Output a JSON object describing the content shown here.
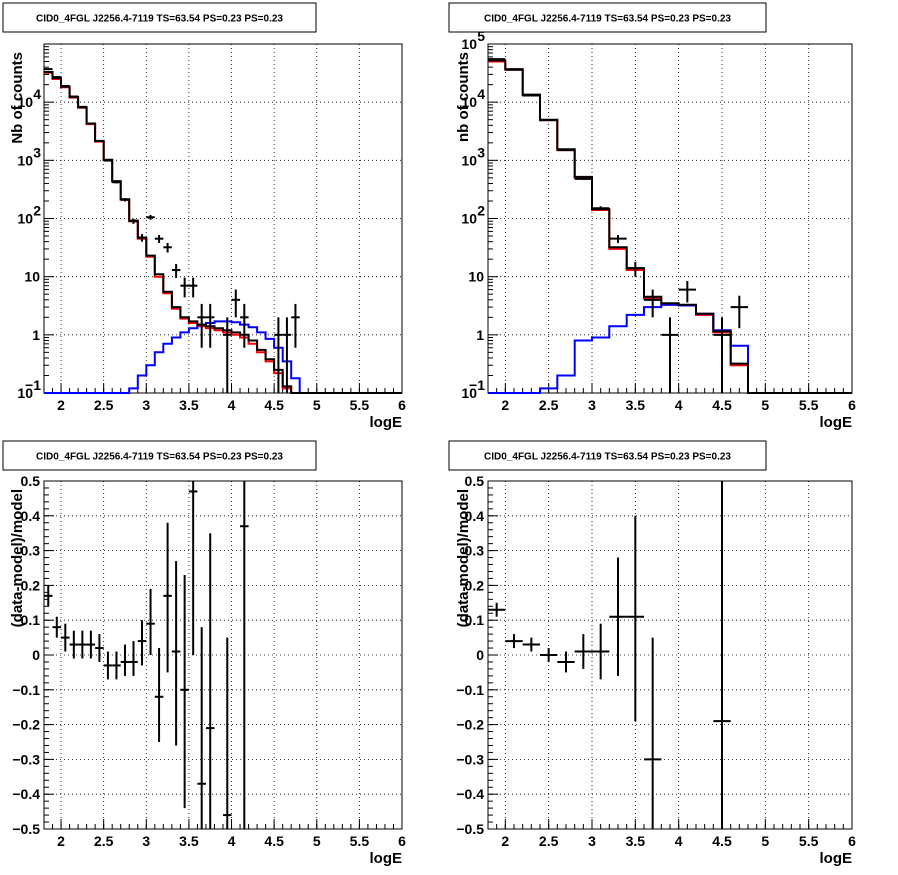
{
  "chart_data": [
    {
      "type": "line",
      "title": "CID0_4FGL J2256.4-7119 TS=63.54 PS=0.23 PS=0.23",
      "xlabel": "logE",
      "ylabel": "Nb of counts",
      "xlim": [
        1.8,
        6.0
      ],
      "ylim": [
        0.1,
        100000
      ],
      "yscale": "log",
      "grid": true,
      "x_ticks": [
        "2",
        "2.5",
        "3",
        "3.5",
        "4",
        "4.5",
        "5",
        "5.5",
        "6"
      ],
      "y_ticks": [
        {
          "v": 0.1,
          "t": "10"
        },
        {
          "v": 1,
          "t": "1"
        },
        {
          "v": 10,
          "t": "10"
        },
        {
          "v": 100,
          "t": "10"
        },
        {
          "v": 1000,
          "t": "10"
        },
        {
          "v": 10000,
          "t": "10"
        }
      ],
      "y_tick_exps": [
        {
          "v": 0.1,
          "t": "−1"
        },
        {
          "v": 100,
          "t": "2"
        },
        {
          "v": 1000,
          "t": "3"
        },
        {
          "v": 10000,
          "t": "4"
        }
      ],
      "bin_edges": [
        1.8,
        1.9,
        2.0,
        2.1,
        2.2,
        2.3,
        2.4,
        2.5,
        2.6,
        2.7,
        2.8,
        2.9,
        3.0,
        3.1,
        3.2,
        3.3,
        3.4,
        3.5,
        3.6,
        3.7,
        3.8,
        3.9,
        4.0,
        4.1,
        4.2,
        4.3,
        4.4,
        4.5,
        4.6,
        4.7,
        4.8,
        4.9,
        5.0,
        5.1,
        5.2,
        5.3,
        5.4,
        5.5,
        5.6,
        5.7,
        5.8,
        5.9,
        6.0
      ],
      "series": [
        {
          "color": "#ff0000",
          "values": [
            32000,
            25000,
            18000,
            12000,
            8000,
            4200,
            2100,
            1000,
            430,
            210,
            90,
            45,
            22,
            10,
            5.2,
            2.8,
            1.9,
            1.6,
            1.4,
            1.3,
            1.2,
            1.1,
            1.0,
            0.9,
            0.7,
            0.5,
            0.35,
            0.22,
            0.12,
            0.1,
            0.1,
            0.1,
            0.1,
            0.1,
            0.1,
            0.1,
            0.1,
            0.1,
            0.1,
            0.1,
            0.1,
            0.1
          ]
        },
        {
          "color": "#0000ff",
          "values": [
            0.1,
            0.1,
            0.1,
            0.1,
            0.1,
            0.1,
            0.1,
            0.1,
            0.1,
            0.1,
            0.12,
            0.2,
            0.3,
            0.5,
            0.7,
            0.9,
            1.1,
            1.3,
            1.5,
            1.6,
            1.7,
            1.7,
            1.65,
            1.5,
            1.35,
            1.1,
            0.85,
            0.6,
            0.35,
            0.18,
            0.1,
            0.1,
            0.1,
            0.1,
            0.1,
            0.1,
            0.1,
            0.1,
            0.1,
            0.1,
            0.1,
            0.1
          ]
        },
        {
          "color": "#000000",
          "values": [
            33000,
            26000,
            18500,
            12300,
            8200,
            4300,
            2150,
            1020,
            440,
            215,
            92,
            47,
            23,
            11,
            5.5,
            3.0,
            2.0,
            1.7,
            1.5,
            1.4,
            1.3,
            1.2,
            1.1,
            1.0,
            0.8,
            0.55,
            0.38,
            0.25,
            0.13,
            0.1,
            0.1,
            0.1,
            0.1,
            0.1,
            0.1,
            0.1,
            0.1,
            0.1,
            0.1,
            0.1,
            0.1,
            0.1
          ]
        }
      ],
      "points": [
        {
          "x": 1.85,
          "y": 37000,
          "dx": 0.05,
          "lo": 36500,
          "hi": 37500
        },
        {
          "x": 1.95,
          "y": 27000,
          "dx": 0.05,
          "lo": 26600,
          "hi": 27400
        },
        {
          "x": 2.05,
          "y": 19000,
          "dx": 0.05,
          "lo": 18700,
          "hi": 19300
        },
        {
          "x": 2.15,
          "y": 12500,
          "dx": 0.05,
          "lo": 12300,
          "hi": 12700
        },
        {
          "x": 2.25,
          "y": 8300,
          "dx": 0.05,
          "lo": 8150,
          "hi": 8450
        },
        {
          "x": 2.35,
          "y": 4300,
          "dx": 0.05,
          "lo": 4200,
          "hi": 4400
        },
        {
          "x": 2.45,
          "y": 2150,
          "dx": 0.05,
          "lo": 2100,
          "hi": 2200
        },
        {
          "x": 2.55,
          "y": 990,
          "dx": 0.05,
          "lo": 960,
          "hi": 1020
        },
        {
          "x": 2.65,
          "y": 420,
          "dx": 0.05,
          "lo": 400,
          "hi": 440
        },
        {
          "x": 2.75,
          "y": 210,
          "dx": 0.05,
          "lo": 196,
          "hi": 224
        },
        {
          "x": 2.85,
          "y": 90,
          "dx": 0.05,
          "lo": 81,
          "hi": 99
        },
        {
          "x": 2.95,
          "y": 47,
          "dx": 0.05,
          "lo": 40,
          "hi": 54
        },
        {
          "x": 3.05,
          "y": 105,
          "dx": 0.05,
          "lo": 95,
          "hi": 115
        },
        {
          "x": 3.15,
          "y": 45,
          "dx": 0.05,
          "lo": 38,
          "hi": 52
        },
        {
          "x": 3.25,
          "y": 32,
          "dx": 0.05,
          "lo": 26,
          "hi": 38
        },
        {
          "x": 3.35,
          "y": 13,
          "dx": 0.05,
          "lo": 9.5,
          "hi": 16.5
        },
        {
          "x": 3.45,
          "y": 7,
          "dx": 0.05,
          "lo": 4.4,
          "hi": 9.6
        },
        {
          "x": 3.55,
          "y": 7,
          "dx": 0.05,
          "lo": 4.4,
          "hi": 9.6
        },
        {
          "x": 3.65,
          "y": 2,
          "dx": 0.05,
          "lo": 0.6,
          "hi": 3.4
        },
        {
          "x": 3.75,
          "y": 2,
          "dx": 0.05,
          "lo": 0.6,
          "hi": 3.4
        },
        {
          "x": 3.95,
          "y": 1,
          "dx": 0.05,
          "lo": 0.1,
          "hi": 2
        },
        {
          "x": 4.05,
          "y": 4,
          "dx": 0.05,
          "lo": 2,
          "hi": 6
        },
        {
          "x": 4.15,
          "y": 2,
          "dx": 0.05,
          "lo": 0.6,
          "hi": 3.4
        },
        {
          "x": 4.55,
          "y": 1,
          "dx": 0.05,
          "lo": 0.1,
          "hi": 2
        },
        {
          "x": 4.65,
          "y": 1,
          "dx": 0.05,
          "lo": 0.1,
          "hi": 2
        },
        {
          "x": 4.75,
          "y": 2,
          "dx": 0.05,
          "lo": 0.6,
          "hi": 3.4
        }
      ]
    },
    {
      "type": "line",
      "title": "CID0_4FGL J2256.4-7119 TS=63.54 PS=0.23 PS=0.23",
      "xlabel": "logE",
      "ylabel": "nb of counts",
      "xlim": [
        1.8,
        6.0
      ],
      "ylim": [
        0.1,
        100000
      ],
      "yscale": "log",
      "grid": true,
      "x_ticks": [
        "2",
        "2.5",
        "3",
        "3.5",
        "4",
        "4.5",
        "5",
        "5.5",
        "6"
      ],
      "y_ticks": [
        {
          "v": 0.1,
          "t": "10"
        },
        {
          "v": 1,
          "t": "1"
        },
        {
          "v": 10,
          "t": "10"
        },
        {
          "v": 100,
          "t": "10"
        },
        {
          "v": 1000,
          "t": "10"
        },
        {
          "v": 10000,
          "t": "10"
        },
        {
          "v": 100000,
          "t": "10"
        }
      ],
      "y_tick_exps": [
        {
          "v": 0.1,
          "t": "−1"
        },
        {
          "v": 100,
          "t": "2"
        },
        {
          "v": 1000,
          "t": "3"
        },
        {
          "v": 10000,
          "t": "4"
        },
        {
          "v": 100000,
          "t": "5"
        }
      ],
      "bin_edges": [
        1.8,
        2.0,
        2.2,
        2.4,
        2.6,
        2.8,
        3.0,
        3.2,
        3.4,
        3.6,
        3.8,
        4.0,
        4.2,
        4.4,
        4.6,
        4.8,
        5.0,
        5.2,
        5.4,
        5.6,
        5.8,
        6.0
      ],
      "series": [
        {
          "color": "#ff0000",
          "values": [
            50000,
            36000,
            13000,
            4900,
            1500,
            500,
            140,
            30,
            13,
            4.2,
            3.3,
            3.2,
            2.2,
            1.1,
            0.3,
            0.1,
            0.1,
            0.1,
            0.1,
            0.1,
            0.1
          ]
        },
        {
          "color": "#0000ff",
          "values": [
            0.1,
            0.1,
            0.1,
            0.12,
            0.2,
            0.8,
            0.9,
            1.4,
            2.2,
            3.0,
            3.3,
            3.2,
            2.3,
            1.2,
            0.65,
            0.1,
            0.1,
            0.1,
            0.1,
            0.1,
            0.1
          ]
        },
        {
          "color": "#000000",
          "values": [
            52000,
            37000,
            13500,
            5000,
            1550,
            520,
            145,
            32,
            14,
            4.5,
            3.5,
            3.3,
            2.3,
            1.15,
            0.32,
            0.1,
            0.1,
            0.1,
            0.1,
            0.1,
            0.1
          ]
        }
      ],
      "points": [
        {
          "x": 1.9,
          "y": 55000,
          "dx": 0.1,
          "lo": 54000,
          "hi": 56000
        },
        {
          "x": 2.1,
          "y": 36000,
          "dx": 0.1,
          "lo": 35400,
          "hi": 36600
        },
        {
          "x": 2.3,
          "y": 13000,
          "dx": 0.1,
          "lo": 12800,
          "hi": 13200
        },
        {
          "x": 2.5,
          "y": 4900,
          "dx": 0.1,
          "lo": 4800,
          "hi": 5000
        },
        {
          "x": 2.7,
          "y": 1500,
          "dx": 0.1,
          "lo": 1460,
          "hi": 1540
        },
        {
          "x": 2.9,
          "y": 480,
          "dx": 0.1,
          "lo": 460,
          "hi": 500
        },
        {
          "x": 3.1,
          "y": 150,
          "dx": 0.1,
          "lo": 138,
          "hi": 162
        },
        {
          "x": 3.3,
          "y": 45,
          "dx": 0.1,
          "lo": 38,
          "hi": 52
        },
        {
          "x": 3.5,
          "y": 14,
          "dx": 0.1,
          "lo": 10,
          "hi": 18
        },
        {
          "x": 3.7,
          "y": 4,
          "dx": 0.1,
          "lo": 2,
          "hi": 6
        },
        {
          "x": 3.9,
          "y": 1,
          "dx": 0.1,
          "lo": 0.1,
          "hi": 2
        },
        {
          "x": 4.1,
          "y": 6,
          "dx": 0.1,
          "lo": 3.6,
          "hi": 8.4
        },
        {
          "x": 4.5,
          "y": 1,
          "dx": 0.1,
          "lo": 0.1,
          "hi": 2
        },
        {
          "x": 4.7,
          "y": 3,
          "dx": 0.1,
          "lo": 1.3,
          "hi": 4.7
        }
      ]
    },
    {
      "type": "scatter",
      "title": "CID0_4FGL J2256.4-7119 TS=63.54 PS=0.23 PS=0.23",
      "xlabel": "logE",
      "ylabel": "(data-model)/model",
      "xlim": [
        1.8,
        6.0
      ],
      "ylim": [
        -0.5,
        0.5
      ],
      "yscale": "linear",
      "grid": true,
      "x_ticks": [
        "2",
        "2.5",
        "3",
        "3.5",
        "4",
        "4.5",
        "5",
        "5.5",
        "6"
      ],
      "y_ticks": [
        {
          "v": 0.5,
          "t": "0.5"
        },
        {
          "v": 0.4,
          "t": "0.4"
        },
        {
          "v": 0.3,
          "t": "0.3"
        },
        {
          "v": 0.2,
          "t": "0.2"
        },
        {
          "v": 0.1,
          "t": "0.1"
        },
        {
          "v": 0,
          "t": "0"
        },
        {
          "v": -0.1,
          "t": "−0.1"
        },
        {
          "v": -0.2,
          "t": "−0.2"
        },
        {
          "v": -0.3,
          "t": "−0.3"
        },
        {
          "v": -0.4,
          "t": "−0.4"
        },
        {
          "v": -0.5,
          "t": "−0.5"
        }
      ],
      "points": [
        {
          "x": 1.85,
          "y": 0.17,
          "dx": 0.05,
          "lo": 0.14,
          "hi": 0.2
        },
        {
          "x": 1.95,
          "y": 0.08,
          "dx": 0.05,
          "lo": 0.05,
          "hi": 0.11
        },
        {
          "x": 2.05,
          "y": 0.05,
          "dx": 0.05,
          "lo": 0.01,
          "hi": 0.09
        },
        {
          "x": 2.15,
          "y": 0.03,
          "dx": 0.05,
          "lo": -0.01,
          "hi": 0.07
        },
        {
          "x": 2.25,
          "y": 0.03,
          "dx": 0.05,
          "lo": -0.01,
          "hi": 0.07
        },
        {
          "x": 2.35,
          "y": 0.03,
          "dx": 0.05,
          "lo": -0.01,
          "hi": 0.07
        },
        {
          "x": 2.45,
          "y": 0.02,
          "dx": 0.05,
          "lo": -0.02,
          "hi": 0.06
        },
        {
          "x": 2.55,
          "y": -0.03,
          "dx": 0.05,
          "lo": -0.07,
          "hi": 0.01
        },
        {
          "x": 2.65,
          "y": -0.03,
          "dx": 0.05,
          "lo": -0.07,
          "hi": 0.01
        },
        {
          "x": 2.75,
          "y": -0.02,
          "dx": 0.05,
          "lo": -0.06,
          "hi": 0.03
        },
        {
          "x": 2.85,
          "y": -0.02,
          "dx": 0.05,
          "lo": -0.06,
          "hi": 0.04
        },
        {
          "x": 2.95,
          "y": 0.04,
          "dx": 0.05,
          "lo": -0.03,
          "hi": 0.1
        },
        {
          "x": 3.05,
          "y": 0.09,
          "dx": 0.05,
          "lo": 0.0,
          "hi": 0.19
        },
        {
          "x": 3.15,
          "y": -0.12,
          "dx": 0.05,
          "lo": -0.25,
          "hi": 0.02
        },
        {
          "x": 3.25,
          "y": 0.17,
          "dx": 0.05,
          "lo": -0.05,
          "hi": 0.38
        },
        {
          "x": 3.35,
          "y": 0.01,
          "dx": 0.05,
          "lo": -0.26,
          "hi": 0.27
        },
        {
          "x": 3.45,
          "y": -0.1,
          "dx": 0.05,
          "lo": -0.44,
          "hi": 0.23
        },
        {
          "x": 3.55,
          "y": 0.47,
          "dx": 0.05,
          "lo": 0.0,
          "hi": 0.5
        },
        {
          "x": 3.65,
          "y": -0.37,
          "dx": 0.05,
          "lo": -0.5,
          "hi": 0.08
        },
        {
          "x": 3.75,
          "y": -0.21,
          "dx": 0.05,
          "lo": -0.5,
          "hi": 0.35
        },
        {
          "x": 3.95,
          "y": -0.46,
          "dx": 0.05,
          "lo": -0.5,
          "hi": 0.05
        },
        {
          "x": 4.15,
          "y": 0.37,
          "dx": 0.05,
          "lo": -0.5,
          "hi": 0.5
        }
      ]
    },
    {
      "type": "scatter",
      "title": "CID0_4FGL J2256.4-7119 TS=63.54 PS=0.23 PS=0.23",
      "xlabel": "logE",
      "ylabel": "(data-model)/model",
      "xlim": [
        1.8,
        6.0
      ],
      "ylim": [
        -0.5,
        0.5
      ],
      "yscale": "linear",
      "grid": true,
      "x_ticks": [
        "2",
        "2.5",
        "3",
        "3.5",
        "4",
        "4.5",
        "5",
        "5.5",
        "6"
      ],
      "y_ticks": [
        {
          "v": 0.5,
          "t": "0.5"
        },
        {
          "v": 0.4,
          "t": "0.4"
        },
        {
          "v": 0.3,
          "t": "0.3"
        },
        {
          "v": 0.2,
          "t": "0.2"
        },
        {
          "v": 0.1,
          "t": "0.1"
        },
        {
          "v": 0,
          "t": "0"
        },
        {
          "v": -0.1,
          "t": "−0.1"
        },
        {
          "v": -0.2,
          "t": "−0.2"
        },
        {
          "v": -0.3,
          "t": "−0.3"
        },
        {
          "v": -0.4,
          "t": "−0.4"
        },
        {
          "v": -0.5,
          "t": "−0.5"
        }
      ],
      "points": [
        {
          "x": 1.9,
          "y": 0.13,
          "dx": 0.1,
          "lo": 0.11,
          "hi": 0.15
        },
        {
          "x": 2.1,
          "y": 0.04,
          "dx": 0.1,
          "lo": 0.02,
          "hi": 0.06
        },
        {
          "x": 2.3,
          "y": 0.03,
          "dx": 0.1,
          "lo": 0.01,
          "hi": 0.05
        },
        {
          "x": 2.5,
          "y": 0.0,
          "dx": 0.1,
          "lo": -0.02,
          "hi": 0.02
        },
        {
          "x": 2.7,
          "y": -0.02,
          "dx": 0.1,
          "lo": -0.05,
          "hi": 0.01
        },
        {
          "x": 2.9,
          "y": 0.01,
          "dx": 0.1,
          "lo": -0.04,
          "hi": 0.06
        },
        {
          "x": 3.1,
          "y": 0.01,
          "dx": 0.1,
          "lo": -0.07,
          "hi": 0.09
        },
        {
          "x": 3.3,
          "y": 0.11,
          "dx": 0.1,
          "lo": -0.06,
          "hi": 0.28
        },
        {
          "x": 3.5,
          "y": 0.11,
          "dx": 0.1,
          "lo": -0.19,
          "hi": 0.4
        },
        {
          "x": 3.7,
          "y": -0.3,
          "dx": 0.1,
          "lo": -0.5,
          "hi": 0.05
        },
        {
          "x": 4.5,
          "y": -0.19,
          "dx": 0.1,
          "lo": -0.5,
          "hi": 0.5
        }
      ]
    }
  ]
}
